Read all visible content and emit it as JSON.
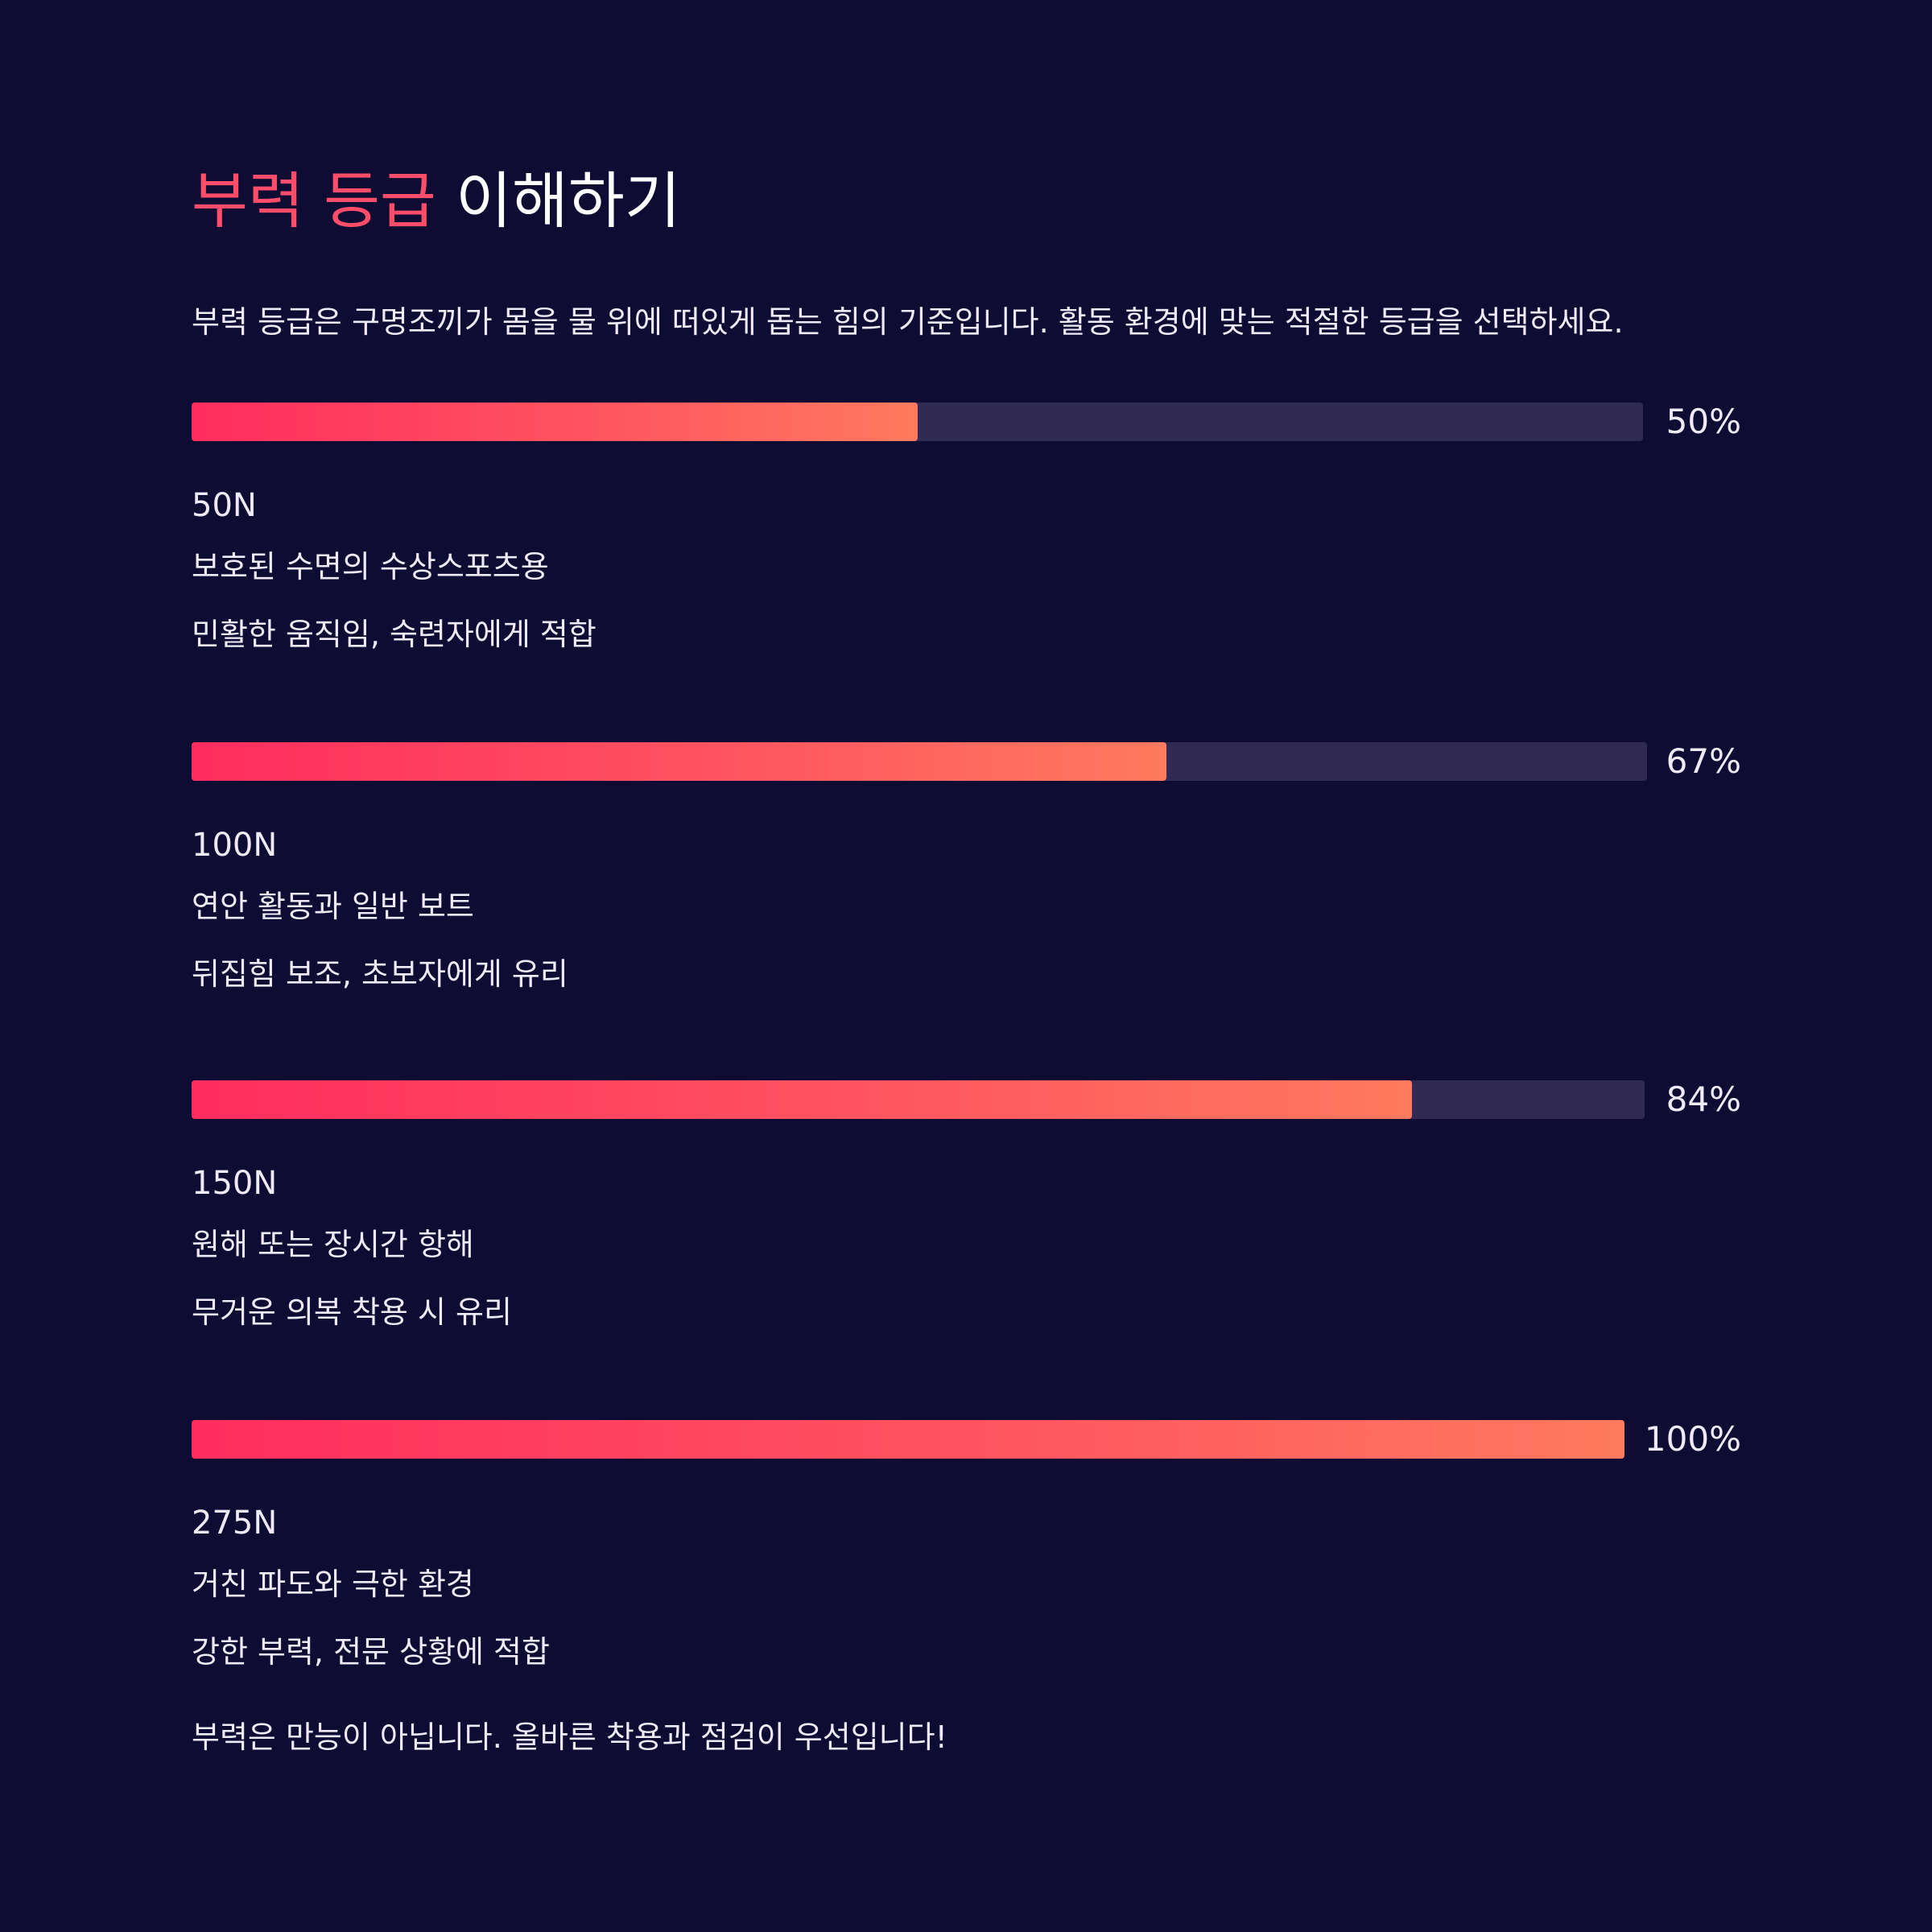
{
  "title": {
    "accent": "부력 등급",
    "rest": " 이해하기"
  },
  "intro": "부력 등급은 구명조끼가 몸을 물 위에 떠있게 돕는 힘의 기준입니다. 활동 환경에 맞는 적절한 등급을 선택하세요.",
  "levels": [
    {
      "percent": 50,
      "percent_label": "50%",
      "force": "50N",
      "use": "보호된 수면의 수상스포츠용",
      "note": "민활한 움직임, 숙련자에게 적합"
    },
    {
      "percent": 67,
      "percent_label": "67%",
      "force": "100N",
      "use": "연안 활동과 일반 보트",
      "note": "뒤집힘 보조, 초보자에게 유리"
    },
    {
      "percent": 84,
      "percent_label": "84%",
      "force": "150N",
      "use": "원해 또는 장시간 항해",
      "note": "무거운 의복 착용 시 유리"
    },
    {
      "percent": 100,
      "percent_label": "100%",
      "force": "275N",
      "use": "거친 파도와 극한 환경",
      "note": "강한 부력, 전문 상황에 적합"
    }
  ],
  "footer": "부력은 만능이 아닙니다. 올바른 착용과 점검이 우선입니다!",
  "colors": {
    "background": "#0f0c33",
    "accent": "#ff4d6a",
    "track": "#302a55",
    "gradient_start": "#ff2d5e",
    "gradient_end": "#ff7a5e"
  }
}
